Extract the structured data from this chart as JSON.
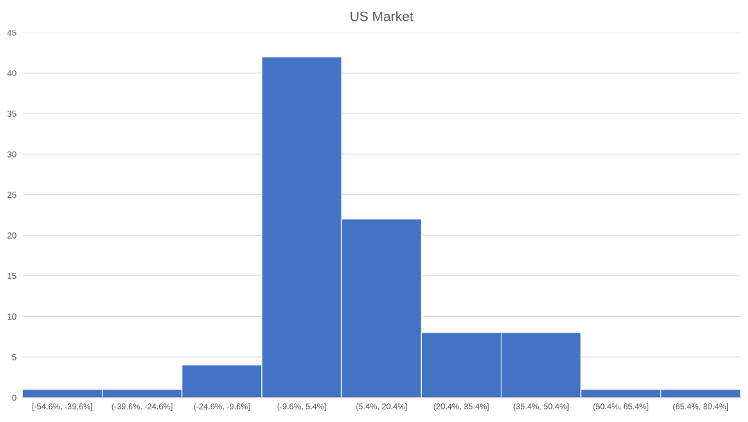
{
  "chart_data": {
    "type": "bar",
    "title": "US Market",
    "categories": [
      "[-54.6%, -39.6%]",
      "(-39.6%, -24.6%]",
      "(-24.6%, -9.6%]",
      "(-9.6%, 5.4%]",
      "(5.4%, 20.4%]",
      "(20.4%, 35.4%]",
      "(35.4%, 50.4%]",
      "(50.4%, 65.4%]",
      "(65.4%, 80.4%]"
    ],
    "values": [
      1,
      1,
      4,
      42,
      22,
      8,
      8,
      1,
      1
    ],
    "color": "#4472c4",
    "ylim": [
      0,
      45
    ],
    "yticks": [
      0,
      5,
      10,
      15,
      20,
      25,
      30,
      35,
      40,
      45
    ],
    "grid": "y"
  }
}
